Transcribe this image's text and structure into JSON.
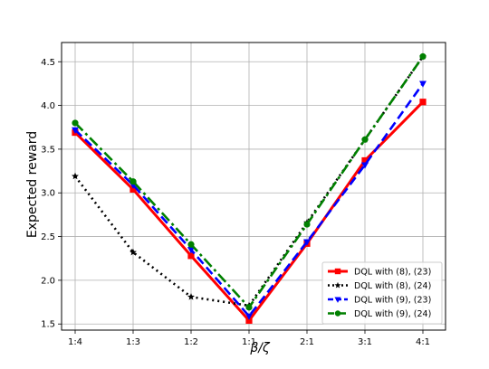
{
  "chart_data": {
    "type": "line",
    "title": "",
    "xlabel": "β/ζ",
    "ylabel": "Expected reward",
    "categories": [
      "1:4",
      "1:3",
      "1:2",
      "1:1",
      "2:1",
      "3:1",
      "4:1"
    ],
    "ylim": [
      1.43,
      4.72
    ],
    "yticks": [
      "1.5",
      "2.0",
      "2.5",
      "3.0",
      "3.5",
      "4.0",
      "4.5"
    ],
    "grid": true,
    "legend_position": "lower-right",
    "series": [
      {
        "name": "DQL with (8), (23)",
        "values": [
          3.69,
          3.04,
          2.28,
          1.54,
          2.42,
          3.37,
          4.04
        ],
        "color": "#ff0000",
        "linestyle": "solid",
        "marker": "square"
      },
      {
        "name": "DQL with (8), (24)",
        "values": [
          3.19,
          2.32,
          1.81,
          1.71,
          2.66,
          3.61,
          4.56
        ],
        "color": "#000000",
        "linestyle": "dotted",
        "marker": "star"
      },
      {
        "name": "DQL with (9), (23)",
        "values": [
          3.72,
          3.09,
          2.35,
          1.59,
          2.44,
          3.32,
          4.25
        ],
        "color": "#0000ff",
        "linestyle": "dashed",
        "marker": "triangle-down"
      },
      {
        "name": "DQL with (9), (24)",
        "values": [
          3.8,
          3.13,
          2.41,
          1.69,
          2.64,
          3.61,
          4.56
        ],
        "color": "#008000",
        "linestyle": "dashdot",
        "marker": "circle"
      }
    ]
  }
}
